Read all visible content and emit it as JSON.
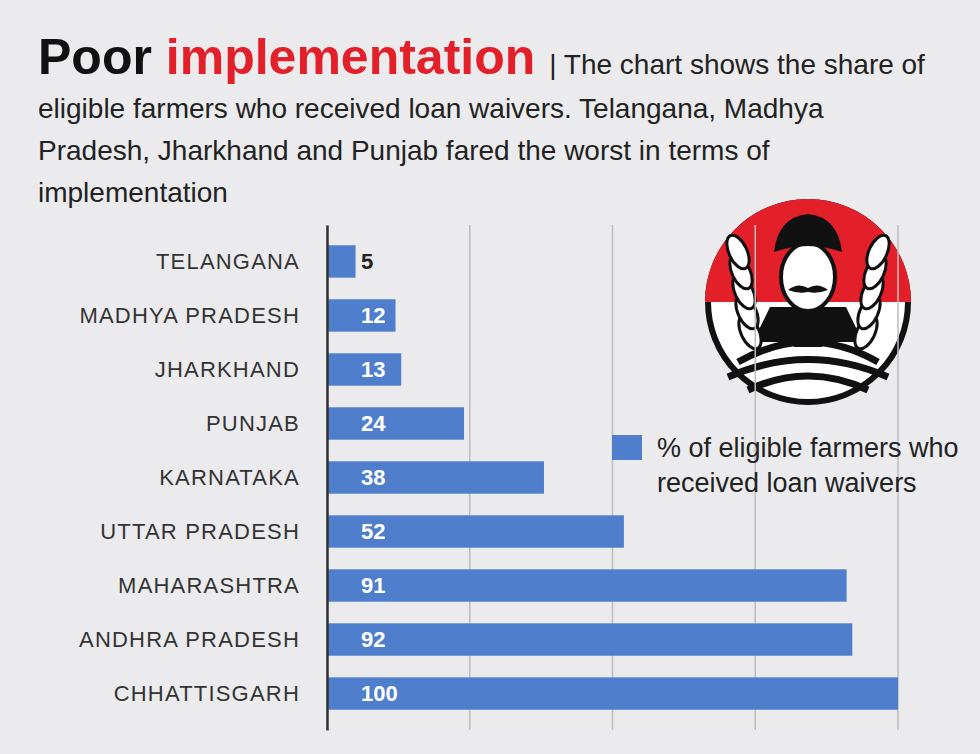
{
  "chart_data": {
    "type": "bar",
    "orientation": "horizontal",
    "title": "Poor implementation",
    "subtitle": "| The chart shows the share of eligible farmers who received loan waivers. Telangana, Madhya Pradesh, Jharkhand and Punjab fared the worst in terms of implementation",
    "categories": [
      "TELANGANA",
      "MADHYA PRADESH",
      "JHARKHAND",
      "PUNJAB",
      "KARNATAKA",
      "UTTAR PRADESH",
      "MAHARASHTRA",
      "ANDHRA PRADESH",
      "CHHATTISGARH"
    ],
    "series": [
      {
        "name": "% of eligible farmers who received loan waivers",
        "color": "#4f7fcc",
        "values": [
          5,
          12,
          13,
          24,
          38,
          52,
          91,
          92,
          100
        ]
      }
    ],
    "xlim": [
      0,
      100
    ],
    "xticks": [
      0,
      25,
      50,
      75,
      100
    ],
    "grid": true,
    "tick_labels": "y",
    "data_labels": true,
    "legend": "right"
  }
}
